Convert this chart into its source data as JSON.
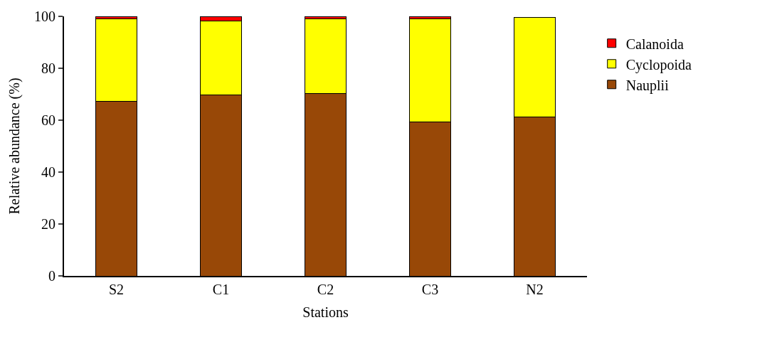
{
  "chart_data": {
    "type": "bar",
    "stacked": true,
    "xlabel": "Stations",
    "ylabel": "Relative abundance (%)",
    "categories": [
      "S2",
      "C1",
      "C2",
      "C3",
      "N2"
    ],
    "series": [
      {
        "name": "Nauplii",
        "color": "#984807",
        "values": [
          67.2,
          69.8,
          70.2,
          59.3,
          61.1
        ]
      },
      {
        "name": "Cyclopoida",
        "color": "#ffff00",
        "values": [
          31.8,
          28.5,
          28.8,
          39.7,
          38.5
        ]
      },
      {
        "name": "Calanoida",
        "color": "#ff0000",
        "values": [
          1.0,
          1.7,
          1.0,
          1.0,
          null
        ]
      }
    ],
    "ylim": [
      0,
      100
    ],
    "yticks": [
      0,
      20,
      40,
      60,
      80,
      100
    ],
    "legend": "right"
  }
}
